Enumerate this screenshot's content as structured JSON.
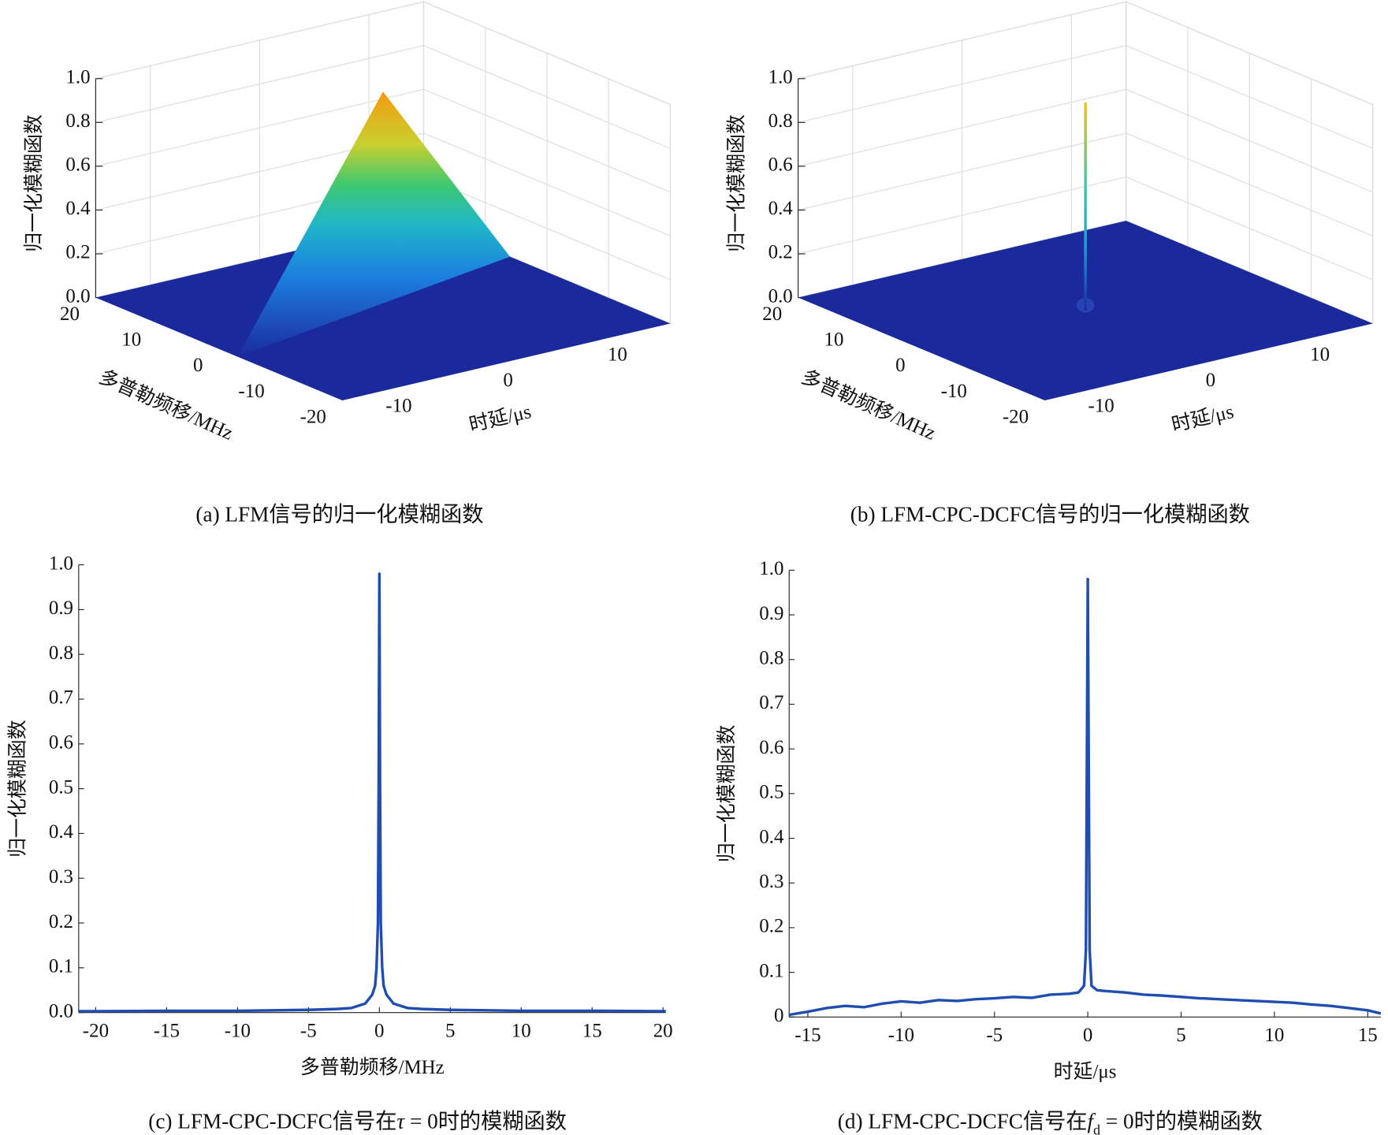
{
  "chart_data": [
    {
      "type": "surface3d",
      "caption": [
        {
          "text": "(a) LFM信号的归一化模糊函数"
        }
      ],
      "xlabel": "时延/μs",
      "ylabel": "多普勒频移/MHz",
      "zlabel": "归一化模糊函数",
      "xlim": [
        -15,
        15
      ],
      "xticks": [
        -10,
        0,
        10
      ],
      "ylim": [
        -20,
        20
      ],
      "yticks": [
        20,
        10,
        0,
        -10,
        -20
      ],
      "zlim": [
        0,
        1
      ],
      "zticks": [
        {
          "value": 0,
          "label": "0.0"
        },
        0.2,
        0.4,
        0.6,
        0.8,
        {
          "value": 1,
          "label": "1.0"
        }
      ],
      "shape": "ridge",
      "peak": 1.0,
      "ridge_tau": [
        -15,
        15
      ],
      "ridge_doppler": [
        -3,
        6
      ],
      "grid": true
    },
    {
      "type": "surface3d",
      "caption": [
        {
          "text": "(b) LFM-CPC-DCFC信号的归一化模糊函数"
        }
      ],
      "xlabel": "时延/μs",
      "ylabel": "多普勒频移/MHz",
      "zlabel": "归一化模糊函数",
      "xlim": [
        -15,
        15
      ],
      "xticks": [
        -10,
        0,
        10
      ],
      "ylim": [
        -20,
        20
      ],
      "yticks": [
        20,
        10,
        0,
        -10,
        -20
      ],
      "zlim": [
        0,
        1
      ],
      "zticks": [
        {
          "value": 0,
          "label": "0.0"
        },
        0.2,
        0.4,
        0.6,
        0.8,
        {
          "value": 1,
          "label": "1.0"
        }
      ],
      "shape": "spike",
      "peak": 0.95,
      "grid": true
    },
    {
      "type": "line",
      "caption": [
        {
          "text": "(c) LFM-CPC-DCFC信号在"
        },
        {
          "text": "τ",
          "style": "italic"
        },
        {
          "text": " = 0时的模糊函数"
        }
      ],
      "xlabel": "多普勒频移/MHz",
      "ylabel": "归一化模糊函数",
      "color": "#1f4db0",
      "xlim": [
        -21.2,
        20.2
      ],
      "xticks": [
        -20,
        -15,
        -10,
        -5,
        0,
        5,
        10,
        15,
        20
      ],
      "ylim": [
        0,
        1
      ],
      "yticks": [
        {
          "value": 0,
          "label": "0.0"
        },
        0.1,
        0.2,
        0.3,
        0.4,
        0.5,
        0.6,
        0.7,
        0.8,
        0.9,
        {
          "value": 1,
          "label": "1.0"
        }
      ],
      "x": [
        -21.2,
        -20,
        -15,
        -10,
        -5,
        -3,
        -2,
        -1,
        -0.5,
        -0.3,
        -0.2,
        -0.1,
        -0.05,
        0,
        0.05,
        0.1,
        0.2,
        0.3,
        0.5,
        1,
        2,
        3,
        5,
        10,
        15,
        20,
        20.2
      ],
      "values": [
        0.003,
        0.003,
        0.004,
        0.004,
        0.006,
        0.008,
        0.01,
        0.02,
        0.04,
        0.06,
        0.1,
        0.2,
        0.5,
        0.98,
        0.5,
        0.2,
        0.1,
        0.06,
        0.04,
        0.02,
        0.01,
        0.008,
        0.006,
        0.004,
        0.004,
        0.003,
        0.003
      ]
    },
    {
      "type": "line",
      "caption": [
        {
          "text": "(d) LFM-CPC-DCFC信号在"
        },
        {
          "text": "f",
          "style": "italic"
        },
        {
          "text": "d",
          "style": "sub"
        },
        {
          "text": " = 0时的模糊函数"
        }
      ],
      "xlabel": "时延/μs",
      "ylabel": "归一化模糊函数",
      "color": "#1f4db0",
      "xlim": [
        -16,
        15.7
      ],
      "xticks": [
        -15,
        -10,
        -5,
        0,
        5,
        10,
        15
      ],
      "ylim": [
        0,
        1
      ],
      "yticks": [
        0,
        0.1,
        0.2,
        0.3,
        0.4,
        0.5,
        0.6,
        0.7,
        0.8,
        0.9,
        {
          "value": 1,
          "label": "1.0"
        }
      ],
      "x": [
        -16,
        -15,
        -14,
        -13,
        -12,
        -11,
        -10,
        -9,
        -8,
        -7,
        -6,
        -5,
        -4,
        -3,
        -2,
        -1,
        -0.5,
        -0.2,
        -0.1,
        0,
        0.1,
        0.2,
        0.5,
        1,
        2,
        3,
        4,
        5,
        6,
        7,
        8,
        9,
        10,
        11,
        12,
        13,
        14,
        15,
        15.7
      ],
      "values": [
        0.005,
        0.012,
        0.02,
        0.025,
        0.022,
        0.03,
        0.035,
        0.032,
        0.038,
        0.036,
        0.04,
        0.042,
        0.045,
        0.043,
        0.05,
        0.052,
        0.055,
        0.07,
        0.15,
        0.98,
        0.15,
        0.07,
        0.06,
        0.058,
        0.055,
        0.05,
        0.048,
        0.045,
        0.042,
        0.04,
        0.038,
        0.036,
        0.034,
        0.032,
        0.028,
        0.025,
        0.02,
        0.015,
        0.008
      ]
    }
  ]
}
